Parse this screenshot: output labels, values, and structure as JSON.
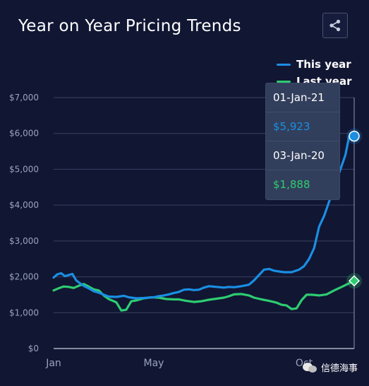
{
  "title": "Year on Year Pricing Trends",
  "share_icon": "share-icon",
  "colors": {
    "background": "#111633",
    "this_year": "#1a8fe3",
    "last_year": "#2ecc71",
    "grid": "#3a4160",
    "axis_text": "#9aa3bd"
  },
  "legend": [
    {
      "label": "This year",
      "color": "#1a8fe3"
    },
    {
      "label": "Last year",
      "color": "#2ecc71"
    }
  ],
  "tooltip": {
    "date_this": "01-Jan-21",
    "value_this": "$5,923",
    "date_last": "03-Jan-20",
    "value_last": "$1,888"
  },
  "watermark": "信德海事",
  "chart_data": {
    "type": "line",
    "title": "Year on Year Pricing Trends",
    "xlabel": "",
    "ylabel": "",
    "ylim": [
      0,
      7000
    ],
    "xlim": [
      0,
      12
    ],
    "y_ticks": [
      0,
      1000,
      2000,
      3000,
      4000,
      5000,
      6000,
      7000
    ],
    "y_tick_labels": [
      "$0",
      "$1,000",
      "$2,000",
      "$3,000",
      "$4,000",
      "$5,000",
      "$6,000",
      "$7,000"
    ],
    "x_ticks": [
      0,
      4,
      10
    ],
    "x_tick_labels": [
      "Jan",
      "May",
      "Oct"
    ],
    "grid": true,
    "legend_position": "top-right",
    "series": [
      {
        "name": "This year",
        "color": "#1a8fe3",
        "x": [
          0,
          0.15,
          0.3,
          0.45,
          0.6,
          0.75,
          0.9,
          1.05,
          1.2,
          1.4,
          1.6,
          1.8,
          2.0,
          2.2,
          2.5,
          2.8,
          3.0,
          3.3,
          3.6,
          3.8,
          4.0,
          4.2,
          4.4,
          4.6,
          4.8,
          5.0,
          5.2,
          5.4,
          5.6,
          5.8,
          6.0,
          6.2,
          6.5,
          6.8,
          7.0,
          7.2,
          7.5,
          7.8,
          8.0,
          8.2,
          8.4,
          8.6,
          8.8,
          9.0,
          9.2,
          9.5,
          9.8,
          10.0,
          10.2,
          10.4,
          10.6,
          10.8,
          11.0,
          11.2,
          11.35,
          11.5,
          11.65,
          11.8,
          11.9,
          12.0
        ],
        "y": [
          1980,
          2070,
          2100,
          2020,
          2050,
          2080,
          1900,
          1820,
          1750,
          1680,
          1600,
          1560,
          1500,
          1450,
          1440,
          1470,
          1430,
          1400,
          1410,
          1420,
          1430,
          1460,
          1480,
          1510,
          1550,
          1580,
          1640,
          1650,
          1630,
          1640,
          1700,
          1740,
          1720,
          1700,
          1720,
          1710,
          1740,
          1780,
          1900,
          2050,
          2200,
          2220,
          2170,
          2150,
          2130,
          2130,
          2200,
          2300,
          2500,
          2800,
          3400,
          3700,
          4100,
          4500,
          4800,
          5100,
          5400,
          5923,
          5900,
          5923
        ]
      },
      {
        "name": "Last year",
        "color": "#2ecc71",
        "x": [
          0,
          0.2,
          0.4,
          0.6,
          0.8,
          1.0,
          1.2,
          1.4,
          1.6,
          1.8,
          2.0,
          2.2,
          2.5,
          2.7,
          2.9,
          3.1,
          3.3,
          3.6,
          3.9,
          4.2,
          4.5,
          4.8,
          5.0,
          5.3,
          5.6,
          5.9,
          6.2,
          6.5,
          6.8,
          7.0,
          7.2,
          7.5,
          7.8,
          8.0,
          8.3,
          8.6,
          8.9,
          9.1,
          9.3,
          9.5,
          9.7,
          9.9,
          10.1,
          10.3,
          10.6,
          10.9,
          11.2,
          11.5,
          11.8,
          12.0
        ],
        "y": [
          1620,
          1680,
          1730,
          1720,
          1690,
          1750,
          1800,
          1730,
          1650,
          1620,
          1480,
          1380,
          1290,
          1060,
          1080,
          1320,
          1340,
          1400,
          1430,
          1420,
          1380,
          1370,
          1370,
          1330,
          1300,
          1320,
          1360,
          1390,
          1420,
          1460,
          1510,
          1520,
          1480,
          1420,
          1370,
          1330,
          1280,
          1220,
          1200,
          1100,
          1120,
          1350,
          1500,
          1500,
          1480,
          1510,
          1620,
          1720,
          1820,
          1888
        ]
      }
    ]
  }
}
